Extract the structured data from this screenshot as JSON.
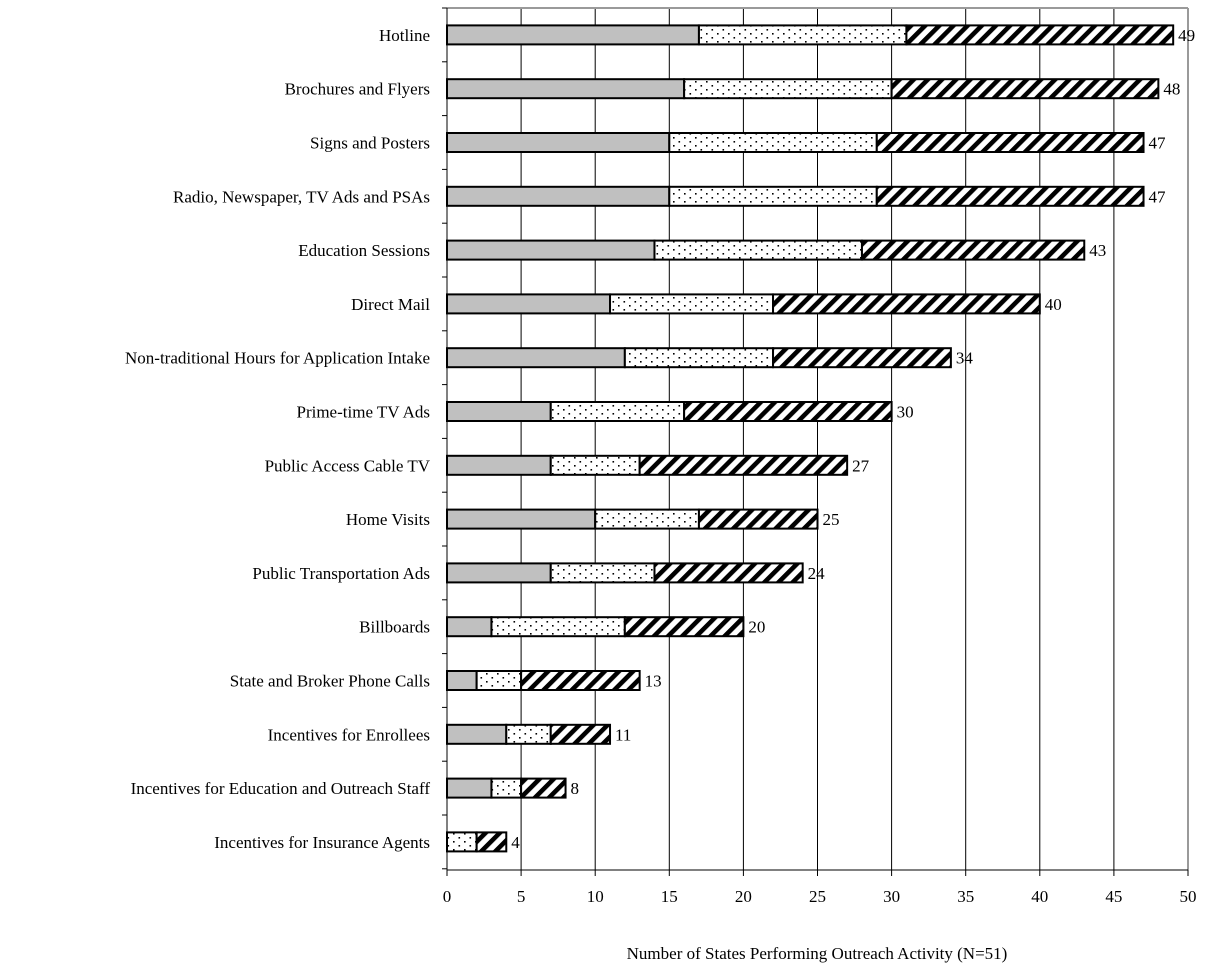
{
  "chart_data": {
    "type": "bar",
    "orientation": "horizontal",
    "stacked": true,
    "title": "",
    "xlabel": "Number of States Performing Outreach Activity (N=51)",
    "ylabel": "",
    "xlim": [
      0,
      50
    ],
    "x_ticks": [
      0,
      5,
      10,
      15,
      20,
      25,
      30,
      35,
      40,
      45,
      50
    ],
    "grid": "vertical",
    "legend": "none",
    "categories": [
      "Hotline",
      "Brochures and Flyers",
      "Signs and Posters",
      "Radio, Newspaper, TV Ads and PSAs",
      "Education Sessions",
      "Direct Mail",
      "Non-traditional Hours for Application Intake",
      "Prime-time TV Ads",
      "Public Access Cable TV",
      "Home Visits",
      "Public Transportation Ads",
      "Billboards",
      "State and Broker Phone Calls",
      "Incentives for Enrollees",
      "Incentives for Education and Outreach Staff",
      "Incentives for Insurance Agents"
    ],
    "series": [
      {
        "pattern": "solid-gray",
        "color": "#c0c0c0",
        "values": [
          17,
          16,
          15,
          15,
          14,
          11,
          12,
          7,
          7,
          10,
          7,
          3,
          2,
          4,
          3,
          0
        ]
      },
      {
        "pattern": "dotted",
        "color": "#ffffff",
        "values": [
          14,
          14,
          14,
          14,
          14,
          11,
          10,
          9,
          6,
          7,
          7,
          9,
          3,
          3,
          2,
          2
        ]
      },
      {
        "pattern": "diagonal-hatch",
        "color": "#000000",
        "values": [
          18,
          18,
          18,
          18,
          15,
          18,
          12,
          14,
          14,
          8,
          10,
          8,
          8,
          4,
          3,
          2
        ]
      }
    ],
    "totals": [
      "49",
      "48",
      "47",
      "47",
      "43",
      "40",
      "34",
      "30",
      "27",
      "25",
      "24",
      "20",
      "13",
      "11",
      "8",
      "4"
    ]
  }
}
